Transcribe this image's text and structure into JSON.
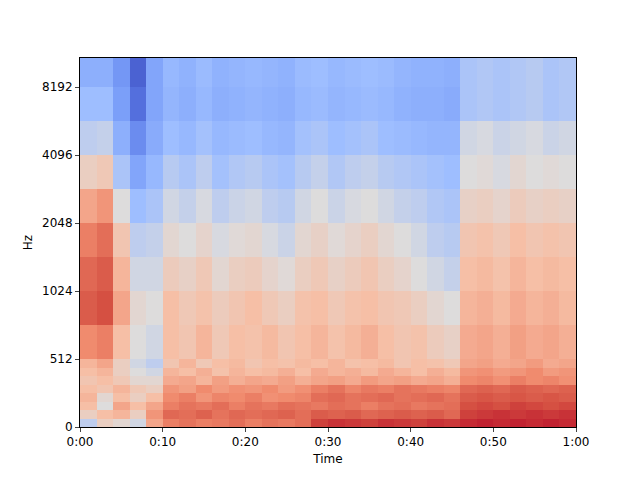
{
  "chart_data": {
    "type": "heatmap",
    "x_label": "Time",
    "y_label": "Hz",
    "log": "y",
    "xlim": [
      0,
      60
    ],
    "ylim": [
      0,
      11025
    ],
    "xticks": [
      {
        "value": 0,
        "label": "0:00"
      },
      {
        "value": 10,
        "label": "0:10"
      },
      {
        "value": 20,
        "label": "0:20"
      },
      {
        "value": 30,
        "label": "0:30"
      },
      {
        "value": 40,
        "label": "0:40"
      },
      {
        "value": 50,
        "label": "0:50"
      },
      {
        "value": 60,
        "label": "1:00"
      }
    ],
    "yticks": [
      0,
      512,
      1024,
      2048,
      4096,
      8192
    ],
    "zlim": [
      -80,
      0
    ],
    "x": [
      0,
      2,
      4,
      6,
      8,
      10,
      12,
      14,
      16,
      18,
      20,
      22,
      24,
      26,
      28,
      30,
      32,
      34,
      36,
      38,
      40,
      42,
      44,
      46,
      48,
      50,
      52,
      54,
      56,
      58,
      60
    ],
    "y": [
      0,
      64,
      128,
      192,
      256,
      320,
      384,
      448,
      512,
      724,
      1024,
      1448,
      2048,
      2896,
      4096,
      5793,
      8192,
      11025
    ],
    "z": [
      [
        -45,
        -35,
        -38,
        -42,
        -25,
        -18,
        -16,
        -18,
        -17,
        -15,
        -18,
        -16,
        -17,
        -15,
        -8,
        -6,
        -7,
        -8,
        -6,
        -7,
        -8,
        -6,
        -7,
        -5,
        -4,
        -5,
        -4,
        -5,
        -4,
        -5
      ],
      [
        -35,
        -30,
        -28,
        -35,
        -22,
        -14,
        -15,
        -13,
        -16,
        -14,
        -15,
        -14,
        -13,
        -15,
        -12,
        -13,
        -12,
        -14,
        -13,
        -12,
        -13,
        -12,
        -14,
        -8,
        -7,
        -6,
        -7,
        -6,
        -7,
        -6
      ],
      [
        -30,
        -40,
        -25,
        -30,
        -25,
        -18,
        -16,
        -17,
        -15,
        -18,
        -16,
        -17,
        -15,
        -16,
        -17,
        -15,
        -16,
        -18,
        -16,
        -15,
        -17,
        -16,
        -15,
        -10,
        -9,
        -10,
        -8,
        -9,
        -10,
        -9
      ],
      [
        -28,
        -38,
        -30,
        -35,
        -30,
        -20,
        -18,
        -22,
        -19,
        -20,
        -18,
        -21,
        -20,
        -19,
        -15,
        -14,
        -16,
        -15,
        -14,
        -16,
        -15,
        -14,
        -16,
        -12,
        -11,
        -12,
        -11,
        -12,
        -11,
        -12
      ],
      [
        -30,
        -32,
        -28,
        -33,
        -35,
        -22,
        -24,
        -20,
        -23,
        -21,
        -22,
        -20,
        -23,
        -21,
        -18,
        -16,
        -19,
        -17,
        -18,
        -16,
        -17,
        -18,
        -19,
        -14,
        -13,
        -14,
        -12,
        -13,
        -14,
        -13
      ],
      [
        -32,
        -30,
        -33,
        -38,
        -38,
        -26,
        -25,
        -28,
        -24,
        -27,
        -25,
        -26,
        -24,
        -27,
        -25,
        -24,
        -26,
        -23,
        -25,
        -24,
        -26,
        -25,
        -27,
        -20,
        -19,
        -21,
        -18,
        -20,
        -19,
        -21
      ],
      [
        -30,
        -28,
        -35,
        -40,
        -42,
        -28,
        -30,
        -27,
        -31,
        -28,
        -30,
        -29,
        -27,
        -30,
        -26,
        -28,
        -27,
        -29,
        -26,
        -28,
        -30,
        -27,
        -29,
        -22,
        -21,
        -23,
        -22,
        -20,
        -23,
        -22
      ],
      [
        -28,
        -25,
        -35,
        -42,
        -45,
        -32,
        -28,
        -33,
        -30,
        -29,
        -32,
        -30,
        -31,
        -29,
        -30,
        -28,
        -31,
        -30,
        -29,
        -32,
        -30,
        -31,
        -33,
        -25,
        -24,
        -26,
        -25,
        -23,
        -26,
        -25
      ],
      [
        -20,
        -18,
        -30,
        -40,
        -42,
        -30,
        -32,
        -28,
        -33,
        -30,
        -31,
        -29,
        -32,
        -30,
        -28,
        -31,
        -29,
        -27,
        -30,
        -32,
        -31,
        -34,
        -36,
        -26,
        -25,
        -27,
        -24,
        -26,
        -25,
        -27
      ],
      [
        -12,
        -10,
        -25,
        -38,
        -40,
        -30,
        -33,
        -31,
        -34,
        -32,
        -30,
        -33,
        -35,
        -31,
        -30,
        -33,
        -31,
        -30,
        -32,
        -33,
        -35,
        -38,
        -40,
        -28,
        -27,
        -29,
        -26,
        -28,
        -27,
        -29
      ],
      [
        -14,
        -12,
        -28,
        -42,
        -42,
        -34,
        -36,
        -33,
        -38,
        -35,
        -34,
        -37,
        -39,
        -35,
        -33,
        -36,
        -34,
        -32,
        -35,
        -37,
        -40,
        -42,
        -44,
        -30,
        -29,
        -31,
        -28,
        -30,
        -29,
        -30
      ],
      [
        -18,
        -15,
        -32,
        -45,
        -44,
        -38,
        -40,
        -37,
        -41,
        -39,
        -38,
        -41,
        -43,
        -38,
        -36,
        -39,
        -37,
        -35,
        -38,
        -40,
        -42,
        -45,
        -46,
        -32,
        -31,
        -33,
        -30,
        -32,
        -31,
        -32
      ],
      [
        -25,
        -22,
        -40,
        -50,
        -48,
        -42,
        -44,
        -41,
        -45,
        -43,
        -42,
        -45,
        -46,
        -42,
        -40,
        -43,
        -41,
        -40,
        -42,
        -44,
        -45,
        -47,
        -48,
        -36,
        -35,
        -37,
        -34,
        -36,
        -35,
        -36
      ],
      [
        -35,
        -33,
        -48,
        -58,
        -52,
        -46,
        -48,
        -45,
        -49,
        -47,
        -46,
        -48,
        -49,
        -46,
        -44,
        -47,
        -45,
        -44,
        -46,
        -47,
        -48,
        -49,
        -50,
        -40,
        -39,
        -41,
        -38,
        -40,
        -39,
        -40
      ],
      [
        -45,
        -44,
        -55,
        -65,
        -56,
        -50,
        -52,
        -49,
        -52,
        -51,
        -50,
        -52,
        -53,
        -49,
        -48,
        -50,
        -49,
        -48,
        -50,
        -51,
        -52,
        -53,
        -53,
        -42,
        -41,
        -43,
        -42,
        -41,
        -43,
        -42
      ],
      [
        -50,
        -50,
        -60,
        -72,
        -58,
        -53,
        -55,
        -52,
        -55,
        -54,
        -53,
        -54,
        -55,
        -52,
        -51,
        -53,
        -52,
        -51,
        -52,
        -54,
        -55,
        -55,
        -56,
        -48,
        -47,
        -48,
        -47,
        -46,
        -48,
        -47
      ],
      [
        -55,
        -55,
        -62,
        -75,
        -58,
        -52,
        -54,
        -51,
        -54,
        -53,
        -52,
        -53,
        -54,
        -51,
        -50,
        -52,
        -51,
        -50,
        -51,
        -53,
        -54,
        -54,
        -55,
        -48,
        -47,
        -48,
        -47,
        -46,
        -48,
        -47
      ]
    ]
  }
}
